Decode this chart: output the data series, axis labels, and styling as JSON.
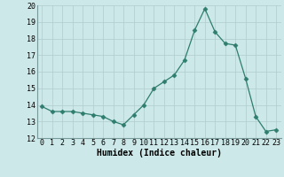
{
  "x": [
    0,
    1,
    2,
    3,
    4,
    5,
    6,
    7,
    8,
    9,
    10,
    11,
    12,
    13,
    14,
    15,
    16,
    17,
    18,
    19,
    20,
    21,
    22,
    23
  ],
  "y": [
    13.9,
    13.6,
    13.6,
    13.6,
    13.5,
    13.4,
    13.3,
    13.0,
    12.8,
    13.4,
    14.0,
    15.0,
    15.4,
    15.8,
    16.7,
    18.5,
    19.8,
    18.4,
    17.7,
    17.6,
    15.6,
    13.3,
    12.4,
    12.5
  ],
  "xlabel": "Humidex (Indice chaleur)",
  "xlim": [
    -0.5,
    23.5
  ],
  "ylim": [
    12,
    20
  ],
  "yticks": [
    12,
    13,
    14,
    15,
    16,
    17,
    18,
    19,
    20
  ],
  "xticks": [
    0,
    1,
    2,
    3,
    4,
    5,
    6,
    7,
    8,
    9,
    10,
    11,
    12,
    13,
    14,
    15,
    16,
    17,
    18,
    19,
    20,
    21,
    22,
    23
  ],
  "line_color": "#2e7d6e",
  "marker": "D",
  "marker_size": 2.5,
  "bg_color": "#cce8e8",
  "grid_color": "#b0cccc",
  "label_fontsize": 7,
  "tick_fontsize": 6
}
